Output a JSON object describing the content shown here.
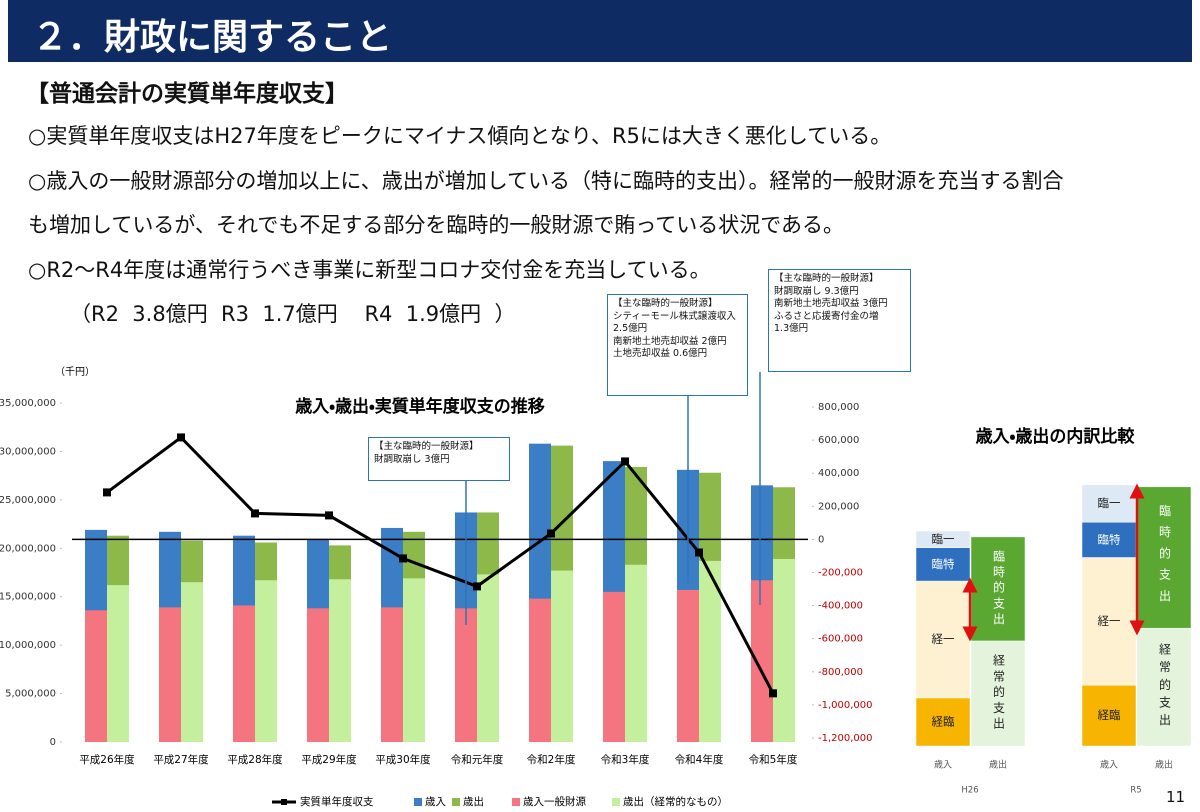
{
  "header": {
    "title": "２．財政に関すること"
  },
  "heading": "【普通会計の実質単年度収支】",
  "lines": [
    "○実質単年度収支はH27年度をピークにマイナス傾向となり、R5には大きく悪化している。",
    "○歳入の一般財源部分の増加以上に、歳出が増加している（特に臨時的支出）。経常的一般財源を充当する割合",
    "も増加しているが、それでも不足する部分を臨時的一般財源で賄っている状況である。",
    "○R2～R4年度は通常行うべき事業に新型コロナ交付金を充当している。",
    "（R2  3.8億円  R3  1.7億円    R4  1.9億円  ）"
  ],
  "callouts": [
    {
      "lines": [
        "【主な臨時的一般財源】",
        "財調取崩し 3億円"
      ]
    },
    {
      "lines": [
        "【主な臨時的一般財源】",
        "シティーモール株式譲渡収入",
        "2.5億円",
        "南新地土地売却収益 2億円",
        "土地売却収益 0.6億円"
      ]
    },
    {
      "lines": [
        "【主な臨時的一般財源】",
        "財調取崩し 9.3億円",
        "南新地土地売却収益 3億円",
        "ふるさと応援寄付金の増",
        "1.3億円"
      ]
    }
  ],
  "page_number": "11",
  "chart_data": [
    {
      "type": "bar",
      "title": "歳入・歳出・実質単年度収支の推移",
      "unit_label": "（千円）",
      "categories": [
        "平成26年度",
        "平成27年度",
        "平成28年度",
        "平成29年度",
        "平成30年度",
        "令和元年度",
        "令和2年度",
        "令和3年度",
        "令和4年度",
        "令和5年度"
      ],
      "series": [
        {
          "name": "実質単年度収支",
          "type": "line",
          "axis": "y2",
          "color": "#000000",
          "values": [
            284000,
            616000,
            157000,
            145000,
            -115000,
            -284000,
            36000,
            471000,
            -79000,
            -930000
          ]
        },
        {
          "name": "歳入",
          "color": "#3b7ec6",
          "values": [
            21900000,
            21700000,
            21300000,
            20900000,
            22100000,
            23700000,
            30800000,
            29000000,
            28100000,
            26500000
          ]
        },
        {
          "name": "歳出",
          "color": "#8db84a",
          "values": [
            21300000,
            20800000,
            20600000,
            20300000,
            21700000,
            23700000,
            30600000,
            28400000,
            27800000,
            26300000
          ]
        },
        {
          "name": "歳入一般財源",
          "color": "#f4747f",
          "values": [
            13600000,
            13900000,
            14100000,
            13800000,
            13900000,
            13800000,
            14800000,
            15500000,
            15700000,
            16700000
          ]
        },
        {
          "name": "歳出（経常的なもの）",
          "color": "#c4f09e",
          "values": [
            16200000,
            16500000,
            16700000,
            16800000,
            16900000,
            17300000,
            17700000,
            18300000,
            18700000,
            18900000
          ]
        }
      ],
      "ylim": [
        0,
        35000000
      ],
      "yticks": [
        0,
        {
          "value": 5000000,
          "label": "5,000,000"
        },
        {
          "value": 10000000,
          "label": "10,000,000"
        },
        {
          "value": 15000000,
          "label": "15,000,000"
        },
        {
          "value": 20000000,
          "label": "20,000,000"
        },
        {
          "value": 25000000,
          "label": "25,000,000"
        },
        {
          "value": 30000000,
          "label": "30,000,000"
        },
        {
          "value": 35000000,
          "label": "35,000,000"
        }
      ],
      "y2lim": [
        -1200000,
        800000
      ],
      "y2ticks": [
        {
          "value": -1200000,
          "label": "-1,200,000"
        },
        {
          "value": -1000000,
          "label": "-1,000,000"
        },
        {
          "value": -800000,
          "label": "-800,000"
        },
        {
          "value": -600000,
          "label": "-600,000"
        },
        {
          "value": -400000,
          "label": "-400,000"
        },
        {
          "value": -200000,
          "label": "-200,000"
        },
        0,
        {
          "value": 200000,
          "label": "200,000"
        },
        {
          "value": 400000,
          "label": "400,000"
        },
        {
          "value": 600000,
          "label": "600,000"
        },
        {
          "value": 800000,
          "label": "800,000"
        }
      ],
      "grid": false
    },
    {
      "type": "stacked-bar",
      "title": "歳入・歳出の内訳比較",
      "groups": [
        {
          "label": "H26",
          "bars": [
            {
              "label": "歳入",
              "segments": [
                {
                  "name": "経臨",
                  "color": "#f7b400",
                  "value": 4900000
                },
                {
                  "name": "経一",
                  "color": "#fdf1d2",
                  "value": 11900000
                },
                {
                  "name": "臨特",
                  "color": "#2f6fc0",
                  "value": 3400000
                },
                {
                  "name": "臨一",
                  "color": "#dde9f5",
                  "value": 1700000
                }
              ]
            },
            {
              "label": "歳出",
              "segments": [
                {
                  "name": "経常的支出",
                  "color": "#e4f3dc",
                  "value": 10700000
                },
                {
                  "name": "臨時的支出",
                  "color": "#5aa832",
                  "value": 10600000
                }
              ]
            }
          ]
        },
        {
          "label": "R5",
          "bars": [
            {
              "label": "歳入",
              "segments": [
                {
                  "name": "経臨",
                  "color": "#f7b400",
                  "value": 6200000
                },
                {
                  "name": "経一",
                  "color": "#fdf1d2",
                  "value": 13000000
                },
                {
                  "name": "臨特",
                  "color": "#2f6fc0",
                  "value": 3600000
                },
                {
                  "name": "臨一",
                  "color": "#dde9f5",
                  "value": 3800000
                }
              ]
            },
            {
              "label": "歳出",
              "segments": [
                {
                  "name": "経常的支出",
                  "color": "#e4f3dc",
                  "value": 12000000
                },
                {
                  "name": "臨時的支出",
                  "color": "#5aa832",
                  "value": 14400000
                }
              ]
            }
          ]
        }
      ]
    }
  ]
}
